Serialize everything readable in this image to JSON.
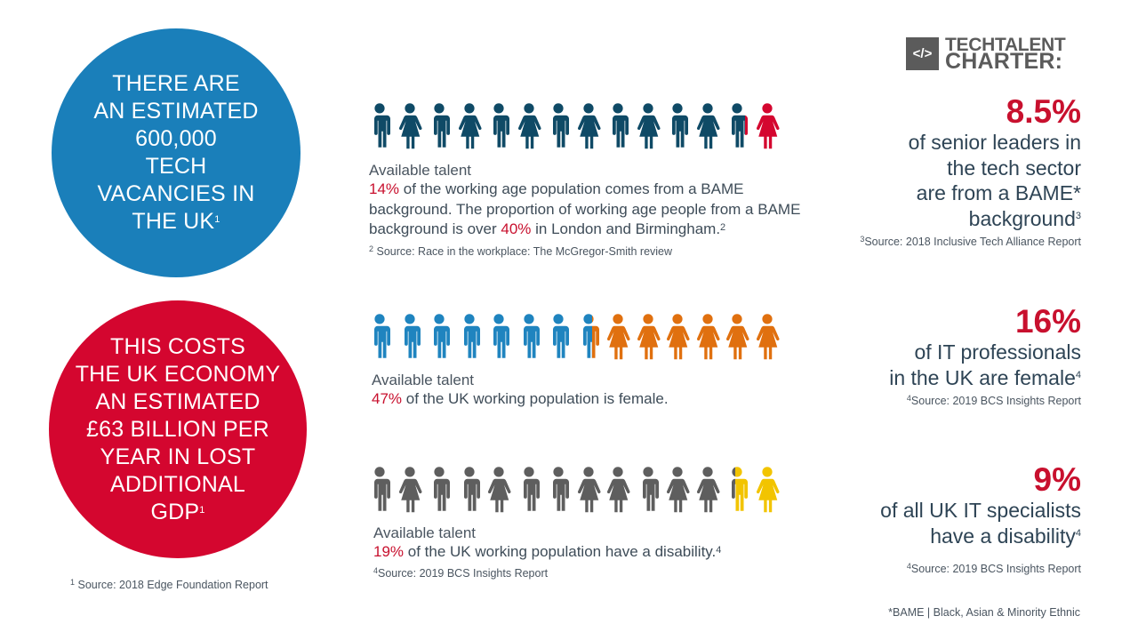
{
  "circles": [
    {
      "lines": [
        "THERE ARE",
        "AN ESTIMATED",
        "600,000",
        "TECH",
        "VACANCIES IN",
        "THE UK"
      ],
      "sup": "1",
      "color": "#1a7fba"
    },
    {
      "lines": [
        "THIS COSTS",
        "THE UK ECONOMY",
        "AN ESTIMATED",
        "£63 BILLION PER",
        "YEAR IN LOST",
        "ADDITIONAL",
        "GDP"
      ],
      "sup": "1",
      "color": "#d4062f"
    }
  ],
  "footnote_1": {
    "sup": "1",
    "text": " Source: 2018 Edge Foundation Report"
  },
  "logo": {
    "icon": "code-brackets-icon",
    "glyph": "</>",
    "line1": "TECHTALENT",
    "line2": "CHARTER:"
  },
  "rows": [
    {
      "figures": [
        "M",
        "F",
        "M",
        "F",
        "M",
        "F",
        "M",
        "F",
        "M",
        "F",
        "M",
        "F",
        "M",
        "F"
      ],
      "base_color": "#0f4a66",
      "highlight_color": "#d4062f",
      "highlight_from_index": 12,
      "partial_fraction": 0.15,
      "heading": "Available talent",
      "text": [
        {
          "t": "14%",
          "hl": true
        },
        {
          "t": " of the working age population comes from a BAME background. The proportion of working age people from a BAME background is over "
        },
        {
          "t": "40%",
          "hl": true
        },
        {
          "t": " in London and Birmingham."
        }
      ],
      "sup": "2",
      "source": {
        "sup": "2",
        "text": " Source: Race in the workplace: The McGregor-Smith review"
      }
    },
    {
      "figures": [
        "M",
        "M",
        "M",
        "M",
        "M",
        "M",
        "M",
        "M",
        "F",
        "F",
        "F",
        "F",
        "F",
        "F"
      ],
      "base_color": "#1f84bf",
      "highlight_color": "#e0700f",
      "highlight_from_index": 7,
      "partial_fraction": 0.4,
      "heading": "Available talent",
      "text": [
        {
          "t": "47%",
          "hl": true
        },
        {
          "t": " of the UK working population is female."
        }
      ],
      "sup": "",
      "source": null
    },
    {
      "figures": [
        "M",
        "F",
        "M",
        "M",
        "F",
        "M",
        "M",
        "F",
        "F",
        "M",
        "F",
        "F",
        "M",
        "F"
      ],
      "base_color": "#5e5e5e",
      "highlight_color": "#f2c400",
      "highlight_from_index": 12,
      "partial_fraction": 0.7,
      "heading": "Available talent",
      "text": [
        {
          "t": "19%",
          "hl": true
        },
        {
          "t": " of the UK working population have a disability."
        }
      ],
      "sup": "4",
      "source": {
        "sup": "4",
        "text": "Source: 2019 BCS Insights Report"
      }
    }
  ],
  "stats": [
    {
      "value": "8.5%",
      "lines": [
        "of senior leaders in",
        "the tech sector",
        "are from a BAME*",
        "background"
      ],
      "sup": "3",
      "source": {
        "sup": "3",
        "text": "Source: 2018 Inclusive Tech Alliance Report"
      }
    },
    {
      "value": "16%",
      "lines": [
        "of IT professionals",
        "in the UK are female"
      ],
      "sup": "4",
      "source": {
        "sup": "4",
        "text": "Source: 2019 BCS Insights Report"
      }
    },
    {
      "value": "9%",
      "lines": [
        "of all UK IT specialists",
        "have a disability"
      ],
      "sup": "4",
      "source": {
        "sup": "4",
        "text": "Source: 2019 BCS Insights Report"
      }
    }
  ],
  "footer": "*BAME | Black, Asian & Minority Ethnic",
  "accent_red": "#c8102e"
}
